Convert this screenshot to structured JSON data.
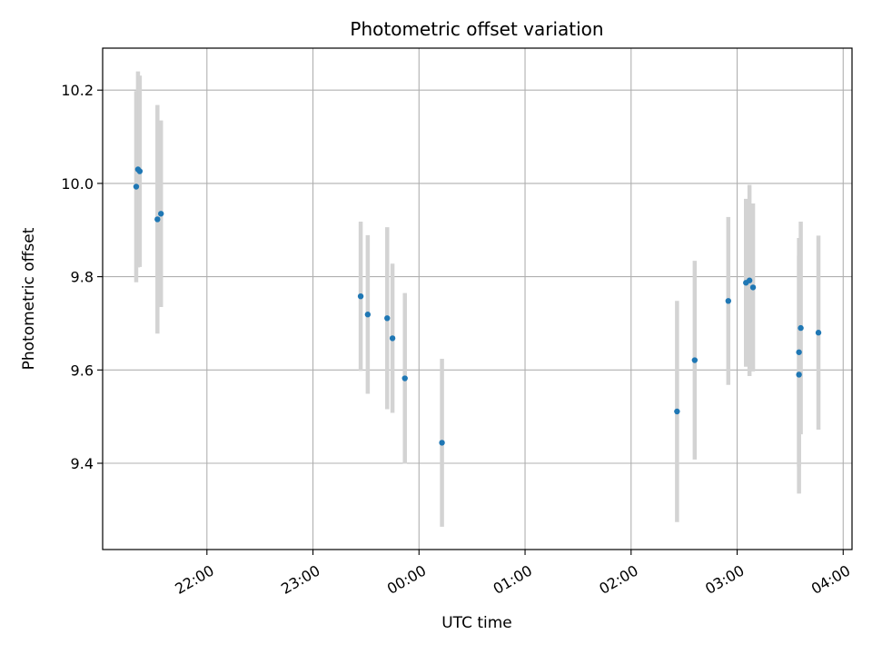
{
  "chart_data": {
    "type": "scatter",
    "title": "Photometric offset variation",
    "xlabel": "UTC time",
    "ylabel": "Photometric offset",
    "grid": true,
    "marker_color": "#1f77b4",
    "errorbar_color": "#d3d3d3",
    "x_ticks": [
      "22:00",
      "23:00",
      "00:00",
      "01:00",
      "02:00",
      "03:00",
      "04:00"
    ],
    "y_ticks": [
      9.4,
      9.6,
      9.8,
      10.0,
      10.2
    ],
    "ylim": [
      9.215,
      10.29
    ],
    "xlim": [
      "21:01",
      "04:05"
    ],
    "points": [
      {
        "x": "21:20",
        "y": 9.993,
        "err": 0.205
      },
      {
        "x": "21:21",
        "y": 10.03,
        "err": 0.21
      },
      {
        "x": "21:22",
        "y": 10.026,
        "err": 0.205
      },
      {
        "x": "21:32",
        "y": 9.923,
        "err": 0.245
      },
      {
        "x": "21:34",
        "y": 9.935,
        "err": 0.2
      },
      {
        "x": "23:27",
        "y": 9.758,
        "err": 0.16
      },
      {
        "x": "23:31",
        "y": 9.719,
        "err": 0.17
      },
      {
        "x": "23:42",
        "y": 9.711,
        "err": 0.195
      },
      {
        "x": "23:45",
        "y": 9.668,
        "err": 0.16
      },
      {
        "x": "23:52",
        "y": 9.582,
        "err": 0.183
      },
      {
        "x": "00:13",
        "y": 9.444,
        "err": 0.18
      },
      {
        "x": "02:26",
        "y": 9.511,
        "err": 0.237
      },
      {
        "x": "02:36",
        "y": 9.621,
        "err": 0.213
      },
      {
        "x": "02:55",
        "y": 9.748,
        "err": 0.18
      },
      {
        "x": "03:05",
        "y": 9.787,
        "err": 0.18
      },
      {
        "x": "03:07",
        "y": 9.792,
        "err": 0.205
      },
      {
        "x": "03:09",
        "y": 9.777,
        "err": 0.18
      },
      {
        "x": "03:35",
        "y": 9.59,
        "err": 0.255
      },
      {
        "x": "03:35",
        "y": 9.638,
        "err": 0.245
      },
      {
        "x": "03:36",
        "y": 9.69,
        "err": 0.228
      },
      {
        "x": "03:46",
        "y": 9.68,
        "err": 0.208
      }
    ]
  }
}
